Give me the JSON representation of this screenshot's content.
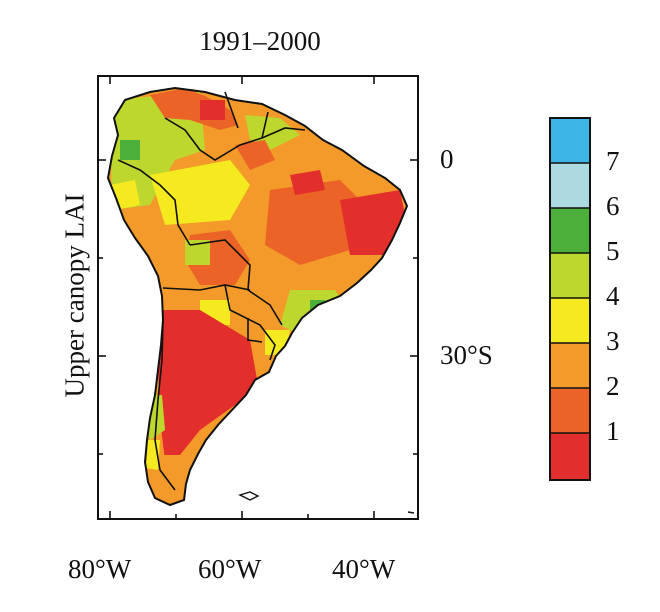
{
  "title": "1991–2000",
  "side_label": "Upper canopy LAI",
  "lat_labels": [
    "0",
    "30°S"
  ],
  "lon_labels": [
    "80°W",
    "60°W",
    "40°W"
  ],
  "colorbar": {
    "labels": [
      "7",
      "6",
      "5",
      "4",
      "3",
      "2",
      "1"
    ],
    "colors": [
      "#3CB5E6",
      "#ADD9E0",
      "#4CAF3A",
      "#BED72E",
      "#F5E91F",
      "#F39A2A",
      "#EB6327",
      "#E32F2B"
    ]
  },
  "lai_scale_colors": {
    "0": "#E32F2B",
    "1": "#EB6327",
    "2": "#F39A2A",
    "3": "#F5E91F",
    "4": "#BED72E",
    "5": "#4CAF3A",
    "6": "#ADD9E0",
    "7": "#3CB5E6"
  },
  "map_extent": {
    "lon": [
      -82,
      -34
    ],
    "lat": [
      12,
      -56
    ]
  },
  "lai_regions": [
    {
      "name": "colombia-venezuela-north",
      "class": 4
    },
    {
      "name": "amazon-west",
      "class": 3
    },
    {
      "name": "amazon-central",
      "class": 2
    },
    {
      "name": "guianas",
      "class": 1
    },
    {
      "name": "brazil-northeast",
      "class": 0
    },
    {
      "name": "brazil-plateau",
      "class": 1
    },
    {
      "name": "southeast-brazil",
      "class": 4
    },
    {
      "name": "gran-chaco",
      "class": 1
    },
    {
      "name": "argentina-patagonia",
      "class": 0
    },
    {
      "name": "chile-coast",
      "class": 3
    },
    {
      "name": "tierra-del-fuego",
      "class": 2
    }
  ]
}
